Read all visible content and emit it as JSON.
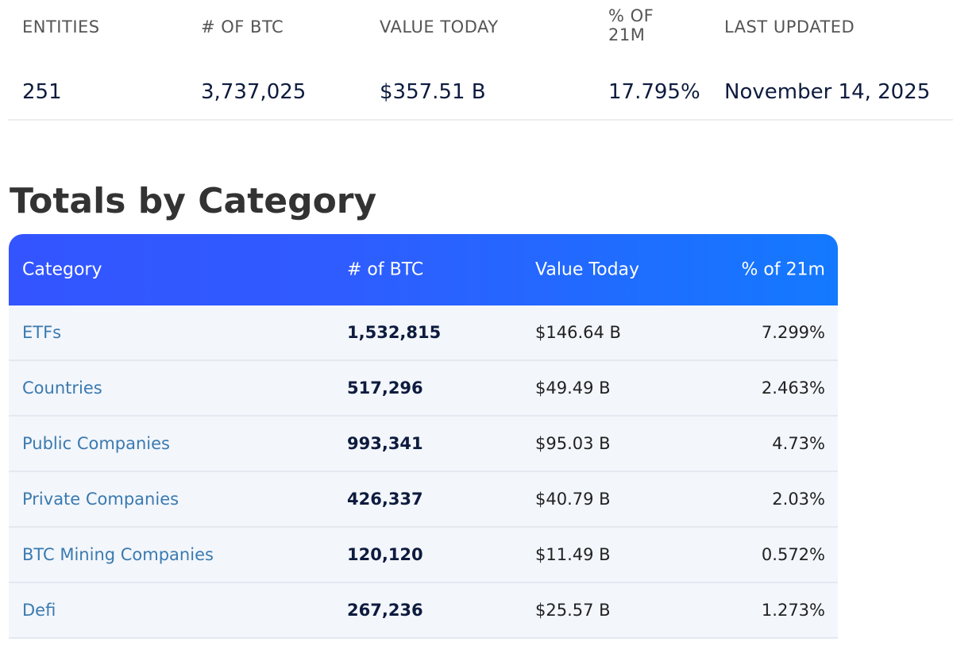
{
  "stats": [
    {
      "label": "ENTITIES",
      "value": "251"
    },
    {
      "label": "# OF BTC",
      "value": "3,737,025"
    },
    {
      "label": "VALUE TODAY",
      "value": "$357.51 B"
    },
    {
      "label": "% OF 21M",
      "value": "17.795%"
    },
    {
      "label": "LAST UPDATED",
      "value": "November 14, 2025"
    }
  ],
  "section_title": "Totals by Category",
  "table": {
    "headers": [
      "Category",
      "# of BTC",
      "Value Today",
      "% of 21m"
    ],
    "rows": [
      [
        "ETFs",
        "1,532,815",
        "$146.64 B",
        "7.299%"
      ],
      [
        "Countries",
        "517,296",
        "$49.49 B",
        "2.463%"
      ],
      [
        "Public Companies",
        "993,341",
        "$95.03 B",
        "4.73%"
      ],
      [
        "Private Companies",
        "426,337",
        "$40.79 B",
        "2.03%"
      ],
      [
        "BTC Mining Companies",
        "120,120",
        "$11.49 B",
        "0.572%"
      ],
      [
        "Defi",
        "267,236",
        "$25.57 B",
        "1.273%"
      ]
    ]
  },
  "colors": {
    "header_start": "#3354ff",
    "header_end": "#1479ff",
    "category_link": "#3a7ab0"
  }
}
